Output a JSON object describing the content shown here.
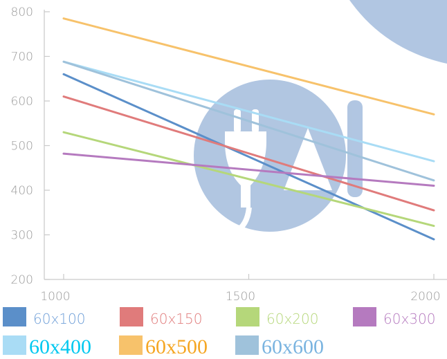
{
  "chart_data": {
    "type": "line",
    "title": "",
    "xlabel": "",
    "ylabel": "",
    "xlim": [
      1000,
      2000
    ],
    "ylim": [
      200,
      800
    ],
    "x_ticks": [
      "1000",
      "1500",
      "2000"
    ],
    "y_ticks": [
      "200",
      "300",
      "400",
      "500",
      "600",
      "700",
      "800"
    ],
    "grid": false,
    "legend_position": "bottom",
    "series": [
      {
        "name": "60x100",
        "color": "#5b8fc9",
        "x": [
          1000,
          2000
        ],
        "y": [
          660,
          290
        ]
      },
      {
        "name": "60x150",
        "color": "#e07b7b",
        "x": [
          1000,
          2000
        ],
        "y": [
          610,
          355
        ]
      },
      {
        "name": "60x200",
        "color": "#b5d77a",
        "x": [
          1000,
          2000
        ],
        "y": [
          530,
          320
        ]
      },
      {
        "name": "60x300",
        "color": "#b57abf",
        "x": [
          1000,
          2000
        ],
        "y": [
          482,
          410
        ]
      },
      {
        "name": "60x400",
        "color": "#a9dcf5",
        "x": [
          1000,
          2000
        ],
        "y": [
          688,
          465
        ]
      },
      {
        "name": "60x500",
        "color": "#f7c26b",
        "x": [
          1000,
          2000
        ],
        "y": [
          785,
          570
        ]
      },
      {
        "name": "60x600",
        "color": "#9fc2db",
        "x": [
          1000,
          2000
        ],
        "y": [
          688,
          422
        ]
      }
    ],
    "legend_text_colors": [
      "#6f9fd8",
      "#e07b7b",
      "#b5d77a",
      "#b57abf",
      "#00c8f0",
      "#f5a623",
      "#7ab4e0"
    ]
  },
  "watermark": {
    "color": "#adc3e0"
  }
}
